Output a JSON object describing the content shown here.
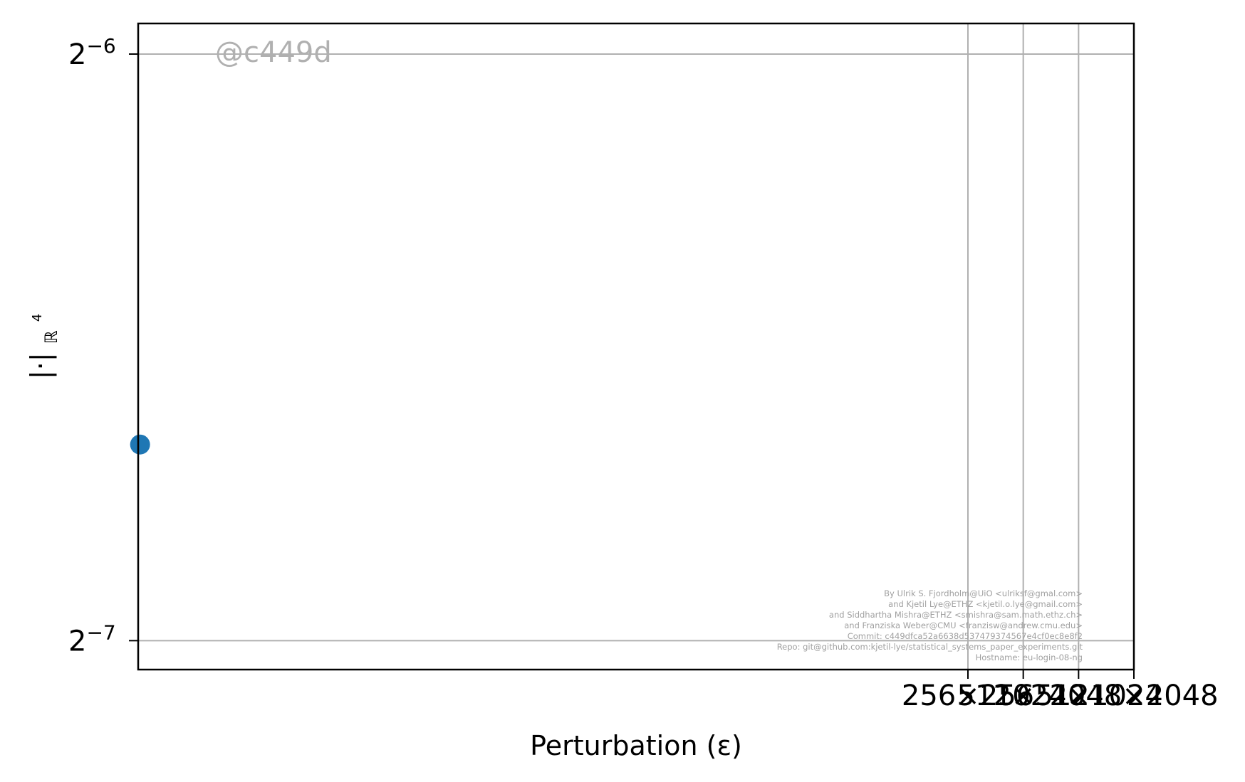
{
  "chart_data": {
    "type": "scatter",
    "watermark": "@c449d",
    "xlabel": "Perturbation (ε)",
    "ylabel": "|·|",
    "ylabel_sub": "ℝ",
    "ylabel_sup": "4",
    "xscale": "log2",
    "yscale": "log2",
    "grid": true,
    "x_tick_labels": [
      "256×256",
      "512×512",
      "1024×1024",
      "2048×2048"
    ],
    "x_tick_values": [
      256,
      512,
      1024,
      2048
    ],
    "y_ticks": [
      {
        "base": "2",
        "exp": "−6",
        "value": 0.015625
      },
      {
        "base": "2",
        "exp": "−7",
        "value": 0.0078125
      }
    ],
    "ylim": [
      0.00755,
      0.0162
    ],
    "xlim_log2": [
      -7.0,
      11.0
    ],
    "series": [
      {
        "color": "#1f77b4",
        "points": [
          {
            "x": 0.008,
            "y": 0.00985
          }
        ]
      }
    ],
    "credits": [
      "By Ulrik S. Fjordholm@UiO <ulriksf@gmal.com>",
      "and Kjetil Lye@ETHZ <kjetil.o.lye@gmail.com>",
      "and Siddhartha Mishra@ETHZ <smishra@sam.math.ethz.ch>",
      "and Franziska Weber@CMU <franzisw@andrew.cmu.edu>",
      "Commit: c449dfca52a6638d537479374567e4cf0ec8e8f2",
      "Repo: git@github.com:kjetil-lye/statistical_systems_paper_experiments.git",
      "Hostname: eu-login-08-ng"
    ]
  }
}
